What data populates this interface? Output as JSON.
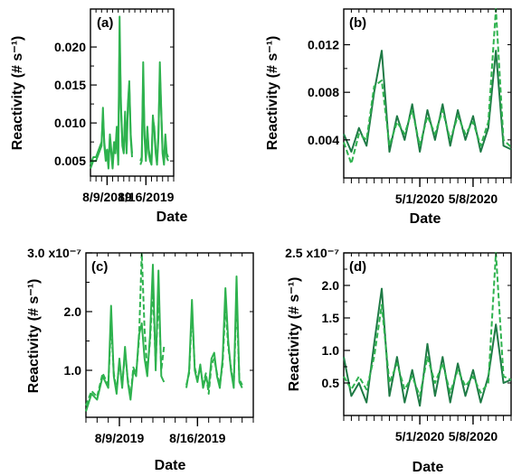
{
  "colors": {
    "light_green": "#2eb24e",
    "dark_green": "#1e7a45",
    "axis": "#000000"
  },
  "chart_data": [
    {
      "panel": "(a)",
      "type": "line",
      "xlabel": "Date",
      "ylabel": "Reactivity (# s⁻¹)",
      "xticks": [
        "8/9/2019",
        "8/16/2019"
      ],
      "x_range_days": [
        "2019-08-06",
        "2019-08-21"
      ],
      "yticks": [
        "0.005",
        "0.010",
        "0.015",
        "0.020"
      ],
      "ylim": [
        0.003,
        0.025
      ],
      "series": [
        {
          "x": [
            "2019-08-06",
            "2019-08-06 12:00",
            "2019-08-07",
            "2019-08-07 12:00",
            "2019-08-08",
            "2019-08-08 06:00",
            "2019-08-08 12:00",
            "2019-08-08 18:00",
            "2019-08-09",
            "2019-08-09 06:00",
            "2019-08-09 12:00",
            "2019-08-09 18:00",
            "2019-08-10",
            "2019-08-10 06:00",
            "2019-08-10 12:00",
            "2019-08-10 18:00",
            "2019-08-11",
            "2019-08-11 06:00",
            "2019-08-11 12:00",
            "2019-08-11 18:00",
            "2019-08-12",
            "2019-08-12 06:00",
            "2019-08-12 12:00",
            "2019-08-12 18:00",
            "2019-08-13",
            "2019-08-13 06:00",
            "2019-08-13 12:00"
          ],
          "values": [
            0.004,
            0.005,
            0.005,
            0.006,
            0.007,
            0.012,
            0.007,
            0.005,
            0.006,
            0.004,
            0.008,
            0.006,
            0.004,
            0.007,
            0.006,
            0.009,
            0.0045,
            0.024,
            0.012,
            0.007,
            0.006,
            0.011,
            0.006,
            0.012,
            0.015,
            0.008,
            0.0055
          ]
        },
        {
          "x": [
            "2019-08-06",
            "2019-08-06 12:00",
            "2019-08-07",
            "2019-08-07 12:00",
            "2019-08-08",
            "2019-08-08 06:00",
            "2019-08-08 12:00",
            "2019-08-08 18:00",
            "2019-08-09",
            "2019-08-09 06:00",
            "2019-08-09 12:00",
            "2019-08-09 18:00",
            "2019-08-10",
            "2019-08-10 06:00",
            "2019-08-10 12:00",
            "2019-08-10 18:00",
            "2019-08-11",
            "2019-08-11 06:00",
            "2019-08-11 12:00",
            "2019-08-11 18:00",
            "2019-08-12",
            "2019-08-12 06:00",
            "2019-08-12 12:00",
            "2019-08-12 18:00",
            "2019-08-13",
            "2019-08-13 06:00",
            "2019-08-13 12:00"
          ],
          "values": [
            0.0045,
            0.0055,
            0.0055,
            0.0065,
            0.0075,
            0.011,
            0.0075,
            0.0055,
            0.0065,
            0.0045,
            0.0085,
            0.0065,
            0.0045,
            0.0075,
            0.0065,
            0.0095,
            0.005,
            0.021,
            0.0125,
            0.0075,
            0.0065,
            0.0115,
            0.0065,
            0.0125,
            0.0155,
            0.0085,
            0.006
          ]
        },
        {
          "x": [
            "2019-08-15",
            "2019-08-15 06:00",
            "2019-08-15 12:00",
            "2019-08-15 18:00",
            "2019-08-16",
            "2019-08-16 06:00",
            "2019-08-16 12:00",
            "2019-08-16 18:00",
            "2019-08-17",
            "2019-08-17 06:00",
            "2019-08-17 12:00",
            "2019-08-17 18:00",
            "2019-08-18",
            "2019-08-18 06:00",
            "2019-08-18 12:00",
            "2019-08-18 18:00",
            "2019-08-19",
            "2019-08-19 06:00",
            "2019-08-19 12:00",
            "2019-08-19 18:00",
            "2019-08-20"
          ],
          "values": [
            0.0045,
            0.005,
            0.018,
            0.008,
            0.005,
            0.009,
            0.006,
            0.005,
            0.0045,
            0.011,
            0.009,
            0.006,
            0.0045,
            0.008,
            0.018,
            0.012,
            0.006,
            0.0045,
            0.008,
            0.0055,
            0.005
          ]
        },
        {
          "x": [
            "2019-08-15",
            "2019-08-15 06:00",
            "2019-08-15 12:00",
            "2019-08-15 18:00",
            "2019-08-16",
            "2019-08-16 06:00",
            "2019-08-16 12:00",
            "2019-08-16 18:00",
            "2019-08-17",
            "2019-08-17 06:00",
            "2019-08-17 12:00",
            "2019-08-17 18:00",
            "2019-08-18",
            "2019-08-18 06:00",
            "2019-08-18 12:00",
            "2019-08-18 18:00",
            "2019-08-19",
            "2019-08-19 06:00",
            "2019-08-19 12:00",
            "2019-08-19 18:00",
            "2019-08-20"
          ],
          "values": [
            0.005,
            0.0055,
            0.016,
            0.0085,
            0.0055,
            0.0095,
            0.0065,
            0.0055,
            0.005,
            0.0105,
            0.0095,
            0.0065,
            0.005,
            0.0085,
            0.0165,
            0.0115,
            0.0065,
            0.005,
            0.0085,
            0.006,
            0.0055
          ]
        }
      ]
    },
    {
      "panel": "(b)",
      "type": "line",
      "xlabel": "Date",
      "ylabel": "Reactivity (# s⁻¹)",
      "xticks": [
        "5/1/2020",
        "5/8/2020"
      ],
      "x_range_days": [
        "2020-04-21",
        "2020-05-13"
      ],
      "yticks": [
        "0.004",
        "0.008",
        "0.012"
      ],
      "ylim": [
        0.0008,
        0.015
      ],
      "series": [
        {
          "x": [
            "2020-04-21",
            "2020-04-22",
            "2020-04-23",
            "2020-04-24",
            "2020-04-25",
            "2020-04-26",
            "2020-04-27",
            "2020-04-28",
            "2020-04-29",
            "2020-04-30",
            "2020-05-01",
            "2020-05-02",
            "2020-05-03",
            "2020-05-04",
            "2020-05-05",
            "2020-05-06",
            "2020-05-07",
            "2020-05-08",
            "2020-05-09",
            "2020-05-10",
            "2020-05-11",
            "2020-05-12",
            "2020-05-13"
          ],
          "values": [
            0.0045,
            0.003,
            0.005,
            0.0035,
            0.008,
            0.0115,
            0.003,
            0.006,
            0.004,
            0.007,
            0.003,
            0.0065,
            0.004,
            0.007,
            0.0035,
            0.0065,
            0.004,
            0.006,
            0.003,
            0.005,
            0.0115,
            0.0035,
            0.0032
          ]
        },
        {
          "x": [
            "2020-04-21",
            "2020-04-22",
            "2020-04-23",
            "2020-04-24",
            "2020-04-25",
            "2020-04-26",
            "2020-04-27",
            "2020-04-28",
            "2020-04-29",
            "2020-04-30",
            "2020-05-01",
            "2020-05-02",
            "2020-05-03",
            "2020-05-04",
            "2020-05-05",
            "2020-05-06",
            "2020-05-07",
            "2020-05-08",
            "2020-05-09",
            "2020-05-10",
            "2020-05-11",
            "2020-05-12",
            "2020-05-13"
          ],
          "values": [
            0.0038,
            0.002,
            0.0045,
            0.004,
            0.0085,
            0.009,
            0.0035,
            0.0055,
            0.0045,
            0.0065,
            0.0035,
            0.006,
            0.0045,
            0.0065,
            0.004,
            0.006,
            0.0045,
            0.0055,
            0.0035,
            0.0055,
            0.015,
            0.004,
            0.0034
          ]
        }
      ]
    },
    {
      "panel": "(c)",
      "type": "line",
      "xlabel": "Date",
      "ylabel": "Reactivity (# s⁻¹)",
      "xticks": [
        "8/9/2019",
        "8/16/2019"
      ],
      "x_range_days": [
        "2019-08-06",
        "2019-08-21"
      ],
      "yticks": [
        "1.0",
        "2.0",
        "3.0 x10⁻⁷"
      ],
      "ylim": [
        0.2,
        3.0
      ],
      "series": [
        {
          "x": [
            "2019-08-06",
            "2019-08-06 12:00",
            "2019-08-07",
            "2019-08-07 12:00",
            "2019-08-08",
            "2019-08-08 06:00",
            "2019-08-08 12:00",
            "2019-08-08 18:00",
            "2019-08-09",
            "2019-08-09 06:00",
            "2019-08-09 12:00",
            "2019-08-09 18:00",
            "2019-08-10",
            "2019-08-10 06:00",
            "2019-08-10 12:00",
            "2019-08-10 18:00",
            "2019-08-11",
            "2019-08-11 06:00",
            "2019-08-11 12:00",
            "2019-08-11 18:00",
            "2019-08-12",
            "2019-08-12 06:00",
            "2019-08-12 12:00",
            "2019-08-12 18:00",
            "2019-08-13"
          ],
          "values": [
            0.3,
            0.6,
            0.5,
            0.9,
            0.7,
            2.1,
            0.9,
            0.6,
            1.2,
            0.7,
            1.4,
            0.8,
            0.5,
            1.0,
            0.9,
            1.6,
            1.8,
            1.2,
            0.9,
            1.6,
            2.8,
            1.0,
            2.7,
            0.9,
            0.8
          ]
        },
        {
          "x": [
            "2019-08-06",
            "2019-08-06 12:00",
            "2019-08-07",
            "2019-08-07 12:00",
            "2019-08-08",
            "2019-08-08 06:00",
            "2019-08-08 12:00",
            "2019-08-08 18:00",
            "2019-08-09",
            "2019-08-09 06:00",
            "2019-08-09 12:00",
            "2019-08-09 18:00",
            "2019-08-10",
            "2019-08-10 06:00",
            "2019-08-10 12:00",
            "2019-08-10 18:00",
            "2019-08-11",
            "2019-08-11 06:00",
            "2019-08-11 12:00",
            "2019-08-11 18:00",
            "2019-08-12",
            "2019-08-12 06:00",
            "2019-08-12 12:00",
            "2019-08-12 18:00",
            "2019-08-13"
          ],
          "values": [
            0.4,
            0.65,
            0.55,
            0.95,
            0.75,
            1.8,
            0.95,
            0.65,
            1.15,
            0.75,
            1.3,
            0.85,
            0.55,
            1.05,
            0.95,
            1.5,
            3.0,
            1.7,
            1.0,
            1.5,
            2.4,
            1.1,
            2.3,
            1.0,
            1.4
          ]
        },
        {
          "x": [
            "2019-08-15",
            "2019-08-15 06:00",
            "2019-08-15 12:00",
            "2019-08-15 18:00",
            "2019-08-16",
            "2019-08-16 06:00",
            "2019-08-16 12:00",
            "2019-08-16 18:00",
            "2019-08-17",
            "2019-08-17 06:00",
            "2019-08-17 12:00",
            "2019-08-17 18:00",
            "2019-08-18",
            "2019-08-18 06:00",
            "2019-08-18 12:00",
            "2019-08-18 18:00",
            "2019-08-19",
            "2019-08-19 06:00",
            "2019-08-19 12:00",
            "2019-08-19 18:00",
            "2019-08-20"
          ],
          "values": [
            0.7,
            1.0,
            2.2,
            1.0,
            0.8,
            1.1,
            0.7,
            0.9,
            0.7,
            1.2,
            1.3,
            0.9,
            0.7,
            1.2,
            2.4,
            1.5,
            1.0,
            0.7,
            2.6,
            0.8,
            0.7
          ]
        },
        {
          "x": [
            "2019-08-15",
            "2019-08-15 06:00",
            "2019-08-15 12:00",
            "2019-08-15 18:00",
            "2019-08-16",
            "2019-08-16 06:00",
            "2019-08-16 12:00",
            "2019-08-16 18:00",
            "2019-08-17",
            "2019-08-17 06:00",
            "2019-08-17 12:00",
            "2019-08-17 18:00",
            "2019-08-18",
            "2019-08-18 06:00",
            "2019-08-18 12:00",
            "2019-08-18 18:00",
            "2019-08-19",
            "2019-08-19 06:00",
            "2019-08-19 12:00",
            "2019-08-19 18:00",
            "2019-08-20"
          ],
          "values": [
            0.75,
            0.95,
            2.0,
            1.05,
            0.85,
            1.05,
            0.75,
            0.95,
            0.6,
            1.1,
            1.2,
            0.95,
            0.75,
            1.1,
            2.1,
            1.4,
            1.05,
            0.75,
            2.2,
            0.85,
            0.75
          ]
        }
      ]
    },
    {
      "panel": "(d)",
      "type": "line",
      "xlabel": "Date",
      "ylabel": "Reactivity (# s⁻¹)",
      "xticks": [
        "5/1/2020",
        "5/8/2020"
      ],
      "x_range_days": [
        "2020-04-21",
        "2020-05-13"
      ],
      "yticks": [
        "0.5",
        "1.0",
        "1.5",
        "2.0",
        "2.5 x10⁻⁷"
      ],
      "ylim": [
        0.0,
        2.5
      ],
      "series": [
        {
          "x": [
            "2020-04-21",
            "2020-04-22",
            "2020-04-23",
            "2020-04-24",
            "2020-04-25",
            "2020-04-26",
            "2020-04-27",
            "2020-04-28",
            "2020-04-29",
            "2020-04-30",
            "2020-05-01",
            "2020-05-02",
            "2020-05-03",
            "2020-05-04",
            "2020-05-05",
            "2020-05-06",
            "2020-05-07",
            "2020-05-08",
            "2020-05-09",
            "2020-05-10",
            "2020-05-11",
            "2020-05-12",
            "2020-05-13"
          ],
          "values": [
            0.9,
            0.3,
            0.5,
            0.2,
            1.1,
            1.95,
            0.3,
            0.9,
            0.2,
            0.7,
            0.15,
            1.1,
            0.3,
            0.9,
            0.2,
            0.8,
            0.3,
            0.7,
            0.2,
            0.6,
            1.4,
            0.5,
            0.55
          ]
        },
        {
          "x": [
            "2020-04-21",
            "2020-04-22",
            "2020-04-23",
            "2020-04-24",
            "2020-04-25",
            "2020-04-26",
            "2020-04-27",
            "2020-04-28",
            "2020-04-29",
            "2020-04-30",
            "2020-05-01",
            "2020-05-02",
            "2020-05-03",
            "2020-05-04",
            "2020-05-05",
            "2020-05-06",
            "2020-05-07",
            "2020-05-08",
            "2020-05-09",
            "2020-05-10",
            "2020-05-11",
            "2020-05-12",
            "2020-05-13"
          ],
          "values": [
            0.6,
            0.4,
            0.6,
            0.4,
            0.9,
            1.7,
            0.5,
            0.8,
            0.4,
            0.6,
            0.3,
            0.9,
            0.5,
            0.8,
            0.35,
            0.7,
            0.45,
            0.6,
            0.35,
            0.5,
            2.5,
            0.6,
            0.55
          ]
        }
      ]
    }
  ]
}
